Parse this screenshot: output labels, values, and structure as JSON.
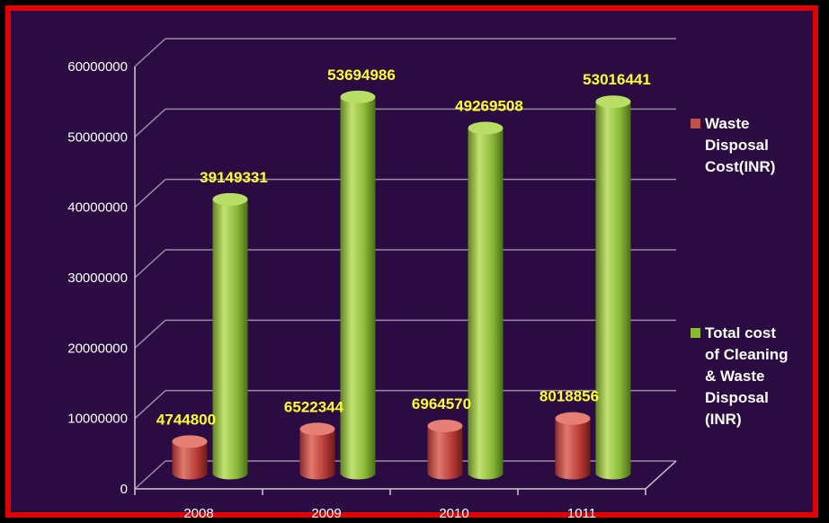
{
  "chart_data": {
    "type": "bar",
    "categories": [
      "2008",
      "2009",
      "2010",
      "1011"
    ],
    "series": [
      {
        "name": "Waste Disposal Cost(INR)",
        "legend_lines": [
          "Waste",
          "Disposal",
          "Cost(INR)"
        ],
        "color": "#c0504d",
        "values": [
          4744800,
          6522344,
          6964570,
          8018856
        ],
        "labels": [
          "4744800",
          "6522344",
          "6964570",
          "8018856"
        ]
      },
      {
        "name": "Total cost of Cleaning & Waste Disposal (INR)",
        "legend_lines": [
          "Total cost",
          "of Cleaning",
          "& Waste",
          "Disposal",
          "(INR)"
        ],
        "color": "#8db832",
        "values": [
          39149331,
          53694986,
          49269508,
          53016441
        ],
        "labels": [
          "39149331",
          "53694986",
          "49269508",
          "53016441"
        ]
      }
    ],
    "ylim": [
      0,
      60000000
    ],
    "yticks": [
      "0",
      "10000000",
      "20000000",
      "30000000",
      "40000000",
      "50000000",
      "60000000"
    ],
    "grid": true,
    "legend": "right"
  }
}
